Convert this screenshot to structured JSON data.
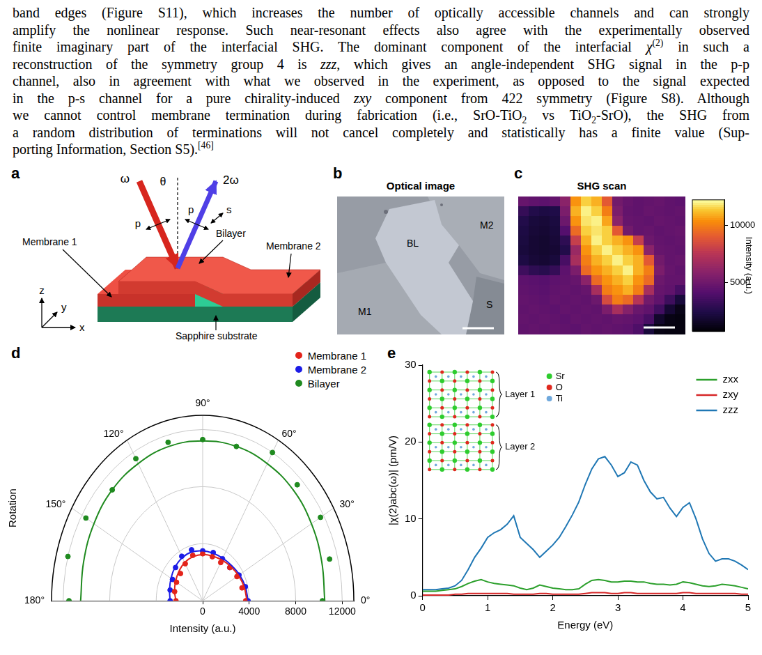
{
  "paragraph": {
    "lines": [
      [
        "band edges (Figure S11), which increases the number of optically accessible channels and can strongly"
      ],
      [
        "amplify the nonlinear response. Such near-resonant effects also agree with the experimentally observed"
      ],
      [
        "finite imaginary part of the interfacial SHG. The dominant component of the interfacial ",
        {
          "i": "χ"
        },
        {
          "sup": "(2)"
        },
        " in such a"
      ],
      [
        "reconstruction of the symmetry group 4 is ",
        {
          "i": "zzz"
        },
        ", which gives an angle-independent SHG signal in the p-p"
      ],
      [
        "channel, also in agreement with what we observed in the experiment, as opposed to the signal expected"
      ],
      [
        "in the p-s channel for a pure chirality-induced ",
        {
          "i": "zxy"
        },
        " component from 422 symmetry (Figure S8). Although"
      ],
      [
        "we cannot control membrane termination during fabrication (i.e., SrO-TiO",
        {
          "sub": "2"
        },
        " vs TiO",
        {
          "sub": "2"
        },
        "-SrO), the SHG from"
      ],
      [
        "a random distribution of terminations will not cancel completely and statistically has a finite value (Sup-"
      ],
      [
        "porting Information, Section S5).",
        {
          "sup": "[46]"
        }
      ]
    ]
  },
  "panels": {
    "a": {
      "panel": "a",
      "labels": {
        "incident": "ω",
        "angle": "θ",
        "reflected": "2ω",
        "incident_pol": "p",
        "reflected_pol": [
          "p",
          "s"
        ],
        "bilayer": "Bilayer",
        "membrane1": "Membrane 1",
        "membrane2": "Membrane 2",
        "substrate": "Sapphire substrate",
        "axes": [
          "z",
          "y",
          "x"
        ]
      }
    },
    "b": {
      "panel": "b",
      "title": "Optical image",
      "labels": [
        "BL",
        "M2",
        "M1",
        "S"
      ]
    }
  },
  "chart_data": [
    {
      "panel": "c",
      "type": "heatmap",
      "title": "SHG scan",
      "tick_labels": false,
      "cells": [
        [
          4800,
          4600,
          4500,
          4700,
          6000,
          10500,
          11500,
          11000,
          9000,
          5200,
          4800,
          4600,
          4700,
          4800,
          4600,
          4500
        ],
        [
          3200,
          2600,
          2400,
          2500,
          5500,
          11000,
          12000,
          11500,
          10000,
          5500,
          4700,
          4600,
          4800,
          4700,
          4600,
          4700
        ],
        [
          2600,
          2200,
          2100,
          2300,
          5000,
          10500,
          11800,
          12000,
          10800,
          6000,
          4800,
          4700,
          4600,
          4800,
          4700,
          4600
        ],
        [
          2400,
          2100,
          2000,
          2200,
          4200,
          9500,
          11500,
          11800,
          11500,
          9000,
          5200,
          4700,
          4800,
          4600,
          4700,
          4800
        ],
        [
          2300,
          2000,
          1900,
          2100,
          3000,
          8000,
          11000,
          12000,
          11500,
          11000,
          10500,
          8000,
          5000,
          4700,
          4600,
          4700
        ],
        [
          2200,
          2000,
          1900,
          2000,
          2600,
          6500,
          10500,
          11500,
          12000,
          11500,
          11000,
          10500,
          6000,
          4800,
          4700,
          4600
        ],
        [
          2400,
          2100,
          2000,
          2200,
          3800,
          7000,
          10000,
          11000,
          11500,
          12000,
          11500,
          11000,
          9000,
          5200,
          4700,
          4800
        ],
        [
          3500,
          3000,
          2800,
          3200,
          4500,
          5500,
          9500,
          10500,
          11000,
          11500,
          12000,
          11000,
          10000,
          5500,
          4800,
          4600
        ],
        [
          4500,
          4400,
          4300,
          4500,
          4600,
          4800,
          6000,
          9500,
          10500,
          11000,
          11500,
          10500,
          9500,
          5000,
          4700,
          4700
        ],
        [
          4600,
          4500,
          4400,
          4600,
          4700,
          4600,
          4800,
          7000,
          10000,
          10500,
          11000,
          10000,
          7000,
          4800,
          4600,
          3800
        ],
        [
          4700,
          4600,
          4500,
          4700,
          4600,
          4700,
          4600,
          5000,
          8500,
          10000,
          9500,
          7500,
          5200,
          4600,
          3500,
          2200
        ],
        [
          4600,
          4700,
          4600,
          4500,
          4700,
          4600,
          4700,
          4600,
          5500,
          7000,
          5800,
          4900,
          4600,
          3600,
          2000,
          1300
        ],
        [
          4700,
          4600,
          4700,
          4600,
          4500,
          4700,
          4600,
          4700,
          4600,
          4800,
          4700,
          4500,
          3800,
          1800,
          1200,
          1100
        ],
        [
          4600,
          4700,
          4600,
          4700,
          4600,
          4500,
          4700,
          4600,
          4700,
          4600,
          4500,
          4000,
          2200,
          1200,
          1100,
          1100
        ]
      ],
      "colorbar": {
        "range": [
          800,
          12200
        ],
        "ticks": [
          5000,
          10000
        ],
        "label": "Intensity (a.u.)"
      }
    },
    {
      "panel": "d",
      "type": "polar",
      "grid": true,
      "legend": "top-right",
      "r_label": "Intensity (a.u.)",
      "angle_label": "Rotation",
      "rlim": [
        0,
        13000
      ],
      "rticks": [
        0,
        4000,
        8000,
        12000
      ],
      "angle_ticks": [
        {
          "value": 0,
          "label": "0°"
        },
        {
          "value": 30,
          "label": "30°"
        },
        {
          "value": 60,
          "label": "60°"
        },
        {
          "value": 90,
          "label": "90°"
        },
        {
          "value": 120,
          "label": "120°"
        },
        {
          "value": 150,
          "label": "150°"
        },
        {
          "value": 180,
          "label": "180°"
        }
      ],
      "angles": [
        0,
        15,
        30,
        45,
        60,
        75,
        90,
        105,
        120,
        135,
        150,
        165,
        180
      ],
      "series": [
        {
          "name": "Membrane 1",
          "color": "#e3241b",
          "marker": "circle",
          "line_style": "solid",
          "values": [
            3700,
            3500,
            3400,
            3300,
            3100,
            3200,
            3300,
            3300,
            3000,
            2700,
            2600,
            2500,
            2300
          ],
          "fit": [
            3800,
            3700,
            3550,
            3400,
            3300,
            3250,
            3250,
            3200,
            3100,
            2900,
            2700,
            2500,
            2300
          ]
        },
        {
          "name": "Membrane 2",
          "color": "#1c1ce6",
          "marker": "circle",
          "line_style": "solid",
          "values": [
            3900,
            3800,
            3600,
            3300,
            3400,
            3500,
            3500,
            3700,
            3600,
            3300,
            3000,
            2900,
            2800
          ],
          "fit": [
            3900,
            3800,
            3650,
            3500,
            3450,
            3450,
            3500,
            3550,
            3500,
            3350,
            3150,
            2950,
            2800
          ]
        },
        {
          "name": "Bilayer",
          "color": "#1f8a1f",
          "marker": "circle",
          "line_style": "solid",
          "values": [
            10300,
            11300,
            11700,
            11500,
            12000,
            11200,
            11300,
            11500,
            11500,
            11000,
            11600,
            12000,
            11500
          ],
          "fit": [
            10500,
            10600,
            10800,
            11000,
            11100,
            11200,
            11200,
            11200,
            11100,
            11000,
            10800,
            10600,
            10500
          ]
        }
      ]
    },
    {
      "panel": "e",
      "type": "line",
      "grid": false,
      "legend": "top-right",
      "x_label": "Energy (eV)",
      "y_label": "|χ(2)abc(ω)| (pm/V)",
      "xlim": [
        0,
        5
      ],
      "xticks": [
        0,
        1,
        2,
        3,
        4,
        5
      ],
      "ylim": [
        0,
        30
      ],
      "yticks": [
        0,
        10,
        20,
        30
      ],
      "x": [
        0,
        0.1,
        0.2,
        0.3,
        0.4,
        0.5,
        0.6,
        0.7,
        0.8,
        0.9,
        1,
        1.1,
        1.2,
        1.3,
        1.4,
        1.5,
        1.6,
        1.7,
        1.8,
        1.9,
        2,
        2.1,
        2.2,
        2.3,
        2.4,
        2.5,
        2.6,
        2.7,
        2.8,
        2.9,
        3,
        3.1,
        3.2,
        3.3,
        3.4,
        3.5,
        3.6,
        3.7,
        3.8,
        3.9,
        4,
        4.1,
        4.2,
        4.3,
        4.4,
        4.5,
        4.6,
        4.7,
        4.8,
        4.9,
        5
      ],
      "series": [
        {
          "name": "zxx",
          "color": "#2ca02c",
          "line_style": "solid",
          "values": [
            0.6,
            0.6,
            0.6,
            0.7,
            0.8,
            0.9,
            1.2,
            1.6,
            1.9,
            2.1,
            1.8,
            1.6,
            1.5,
            1.4,
            1.3,
            1.0,
            0.8,
            1.0,
            1.4,
            1.2,
            1.0,
            0.9,
            0.8,
            0.8,
            0.9,
            1.5,
            2.0,
            2.1,
            2.0,
            1.8,
            1.8,
            1.9,
            1.9,
            1.8,
            1.8,
            1.6,
            1.5,
            1.5,
            1.4,
            1.5,
            1.8,
            1.7,
            1.5,
            1.3,
            1.2,
            1.3,
            1.5,
            1.4,
            1.3,
            1.1,
            0.9
          ]
        },
        {
          "name": "zxy",
          "color": "#d62728",
          "line_style": "solid",
          "values": [
            0.1,
            0.1,
            0.1,
            0.1,
            0.1,
            0.2,
            0.2,
            0.3,
            0.3,
            0.3,
            0.3,
            0.3,
            0.3,
            0.3,
            0.2,
            0.2,
            0.2,
            0.2,
            0.3,
            0.3,
            0.2,
            0.2,
            0.2,
            0.2,
            0.2,
            0.3,
            0.4,
            0.4,
            0.4,
            0.3,
            0.3,
            0.4,
            0.4,
            0.3,
            0.3,
            0.3,
            0.3,
            0.3,
            0.3,
            0.3,
            0.4,
            0.4,
            0.3,
            0.3,
            0.3,
            0.3,
            0.3,
            0.3,
            0.3,
            0.2,
            0.2
          ]
        },
        {
          "name": "zzz",
          "color": "#1f77b4",
          "line_style": "solid",
          "values": [
            0.8,
            0.8,
            0.8,
            0.9,
            1.0,
            1.3,
            2.0,
            3.4,
            5.0,
            6.2,
            7.6,
            8.2,
            8.6,
            9.3,
            10.4,
            7.6,
            6.8,
            6.0,
            5.0,
            5.8,
            6.6,
            7.6,
            9.0,
            10.5,
            12.2,
            14.5,
            16.5,
            17.8,
            18.1,
            17.0,
            15.5,
            16.0,
            17.4,
            17.0,
            15.0,
            13.5,
            12.6,
            12.8,
            11.4,
            10.3,
            11.5,
            12.1,
            10.0,
            7.4,
            5.5,
            4.5,
            4.8,
            4.8,
            4.5,
            4.0,
            3.4
          ]
        }
      ],
      "inset": {
        "layer_labels": [
          "Layer 1",
          "Layer 2"
        ],
        "atoms": [
          {
            "label": "Sr",
            "color": "#2ecc2e"
          },
          {
            "label": "O",
            "color": "#e0281e"
          },
          {
            "label": "Ti",
            "color": "#6fa8dc"
          }
        ]
      }
    }
  ]
}
